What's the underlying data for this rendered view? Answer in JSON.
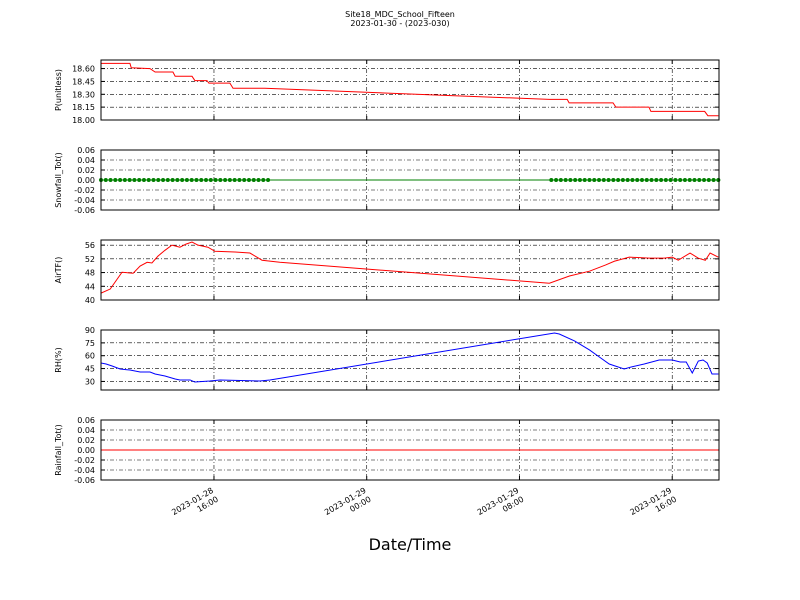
{
  "title": "Site18_MDC_School_Fifteen",
  "subtitle": "2023-01-30 - (2023-030)",
  "xlabel": "Date/Time",
  "chart_data": [
    {
      "type": "line",
      "ylabel": "P(unitless)",
      "color": "#ff0000",
      "grid": true,
      "xlim": [
        "2023-01-28 10:05",
        "2023-01-29 18:27"
      ],
      "xticks": [
        "2023-01-28 16:00",
        "2023-01-29 00:00",
        "2023-01-29 08:00",
        "2023-01-29 16:00"
      ],
      "ylim": [
        18.0,
        18.7
      ],
      "yticks": [
        {
          "value": 18.0,
          "label": "18.00"
        },
        {
          "value": 18.15,
          "label": "18.15"
        },
        {
          "value": 18.3,
          "label": "18.30"
        },
        {
          "value": 18.45,
          "label": "18.45"
        },
        {
          "value": 18.6,
          "label": "18.60"
        }
      ],
      "x": [
        "2023-01-28 10:05",
        "2023-01-28 11:36",
        "2023-01-28 11:40",
        "2023-01-28 12:39",
        "2023-01-28 12:55",
        "2023-01-28 13:51",
        "2023-01-28 13:58",
        "2023-01-28 14:51",
        "2023-01-28 15:00",
        "2023-01-28 15:38",
        "2023-01-28 15:44",
        "2023-01-28 16:50",
        "2023-01-28 17:00",
        "2023-01-28 18:40",
        "2023-01-29 09:34",
        "2023-01-29 10:30",
        "2023-01-29 10:36",
        "2023-01-29 12:54",
        "2023-01-29 13:03",
        "2023-01-29 14:47",
        "2023-01-29 14:53",
        "2023-01-29 17:42",
        "2023-01-29 17:52",
        "2023-01-29 18:25"
      ],
      "values": [
        18.66,
        18.66,
        18.61,
        18.6,
        18.56,
        18.56,
        18.51,
        18.51,
        18.46,
        18.46,
        18.43,
        18.43,
        18.37,
        18.37,
        18.24,
        18.24,
        18.2,
        18.2,
        18.15,
        18.15,
        18.1,
        18.1,
        18.05,
        18.05
      ]
    },
    {
      "type": "line",
      "ylabel": "Snowfall_Tot()",
      "color": "#007f00",
      "marker": "o",
      "grid": true,
      "xlim": [
        "2023-01-28 10:05",
        "2023-01-29 18:27"
      ],
      "xticks": [
        "2023-01-28 16:00",
        "2023-01-29 00:00",
        "2023-01-29 08:00",
        "2023-01-29 16:00"
      ],
      "ylim": [
        -0.06,
        0.06
      ],
      "yticks": [
        {
          "value": -0.06,
          "label": "-0.06"
        },
        {
          "value": -0.04,
          "label": "-0.04"
        },
        {
          "value": -0.02,
          "label": "-0.02"
        },
        {
          "value": 0,
          "label": "0.00"
        },
        {
          "value": 0.02,
          "label": "0.02"
        },
        {
          "value": 0.04,
          "label": "0.04"
        },
        {
          "value": 0.06,
          "label": "0.06"
        }
      ],
      "x": [
        "2023-01-28 10:05",
        "2023-01-28 10:20",
        "2023-01-28 10:35",
        "2023-01-28 10:50",
        "2023-01-28 11:05",
        "2023-01-28 11:20",
        "2023-01-28 11:35",
        "2023-01-28 11:50",
        "2023-01-28 12:05",
        "2023-01-28 12:20",
        "2023-01-28 12:35",
        "2023-01-28 12:50",
        "2023-01-28 13:05",
        "2023-01-28 13:20",
        "2023-01-28 13:35",
        "2023-01-28 13:50",
        "2023-01-28 14:05",
        "2023-01-28 14:20",
        "2023-01-28 14:35",
        "2023-01-28 14:50",
        "2023-01-28 15:05",
        "2023-01-28 15:20",
        "2023-01-28 15:35",
        "2023-01-28 15:50",
        "2023-01-28 16:05",
        "2023-01-28 16:20",
        "2023-01-28 16:35",
        "2023-01-28 16:50",
        "2023-01-28 17:05",
        "2023-01-28 17:20",
        "2023-01-28 17:35",
        "2023-01-28 17:50",
        "2023-01-28 18:05",
        "2023-01-28 18:20",
        "2023-01-28 18:35",
        "2023-01-28 18:50",
        "2023-01-29 09:40",
        "2023-01-29 09:55",
        "2023-01-29 10:10",
        "2023-01-29 10:25",
        "2023-01-29 10:40",
        "2023-01-29 10:55",
        "2023-01-29 11:10",
        "2023-01-29 11:25",
        "2023-01-29 11:40",
        "2023-01-29 11:55",
        "2023-01-29 12:10",
        "2023-01-29 12:25",
        "2023-01-29 12:40",
        "2023-01-29 12:55",
        "2023-01-29 13:10",
        "2023-01-29 13:25",
        "2023-01-29 13:40",
        "2023-01-29 13:55",
        "2023-01-29 14:10",
        "2023-01-29 14:25",
        "2023-01-29 14:40",
        "2023-01-29 14:55",
        "2023-01-29 15:10",
        "2023-01-29 15:25",
        "2023-01-29 15:40",
        "2023-01-29 15:55",
        "2023-01-29 16:10",
        "2023-01-29 16:25",
        "2023-01-29 16:40",
        "2023-01-29 16:55",
        "2023-01-29 17:10",
        "2023-01-29 17:25",
        "2023-01-29 17:40",
        "2023-01-29 17:55",
        "2023-01-29 18:10",
        "2023-01-29 18:25"
      ],
      "values": [
        0,
        0,
        0,
        0,
        0,
        0,
        0,
        0,
        0,
        0,
        0,
        0,
        0,
        0,
        0,
        0,
        0,
        0,
        0,
        0,
        0,
        0,
        0,
        0,
        0,
        0,
        0,
        0,
        0,
        0,
        0,
        0,
        0,
        0,
        0,
        0,
        0,
        0,
        0,
        0,
        0,
        0,
        0,
        0,
        0,
        0,
        0,
        0,
        0,
        0,
        0,
        0,
        0,
        0,
        0,
        0,
        0,
        0,
        0,
        0,
        0,
        0,
        0,
        0,
        0,
        0,
        0,
        0,
        0,
        0,
        0,
        0
      ]
    },
    {
      "type": "line",
      "ylabel": "AirTF()",
      "color": "#ff0000",
      "grid": true,
      "xlim": [
        "2023-01-28 10:05",
        "2023-01-29 18:27"
      ],
      "xticks": [
        "2023-01-28 16:00",
        "2023-01-29 00:00",
        "2023-01-29 08:00",
        "2023-01-29 16:00"
      ],
      "ylim": [
        40,
        57.5
      ],
      "yticks": [
        40,
        44,
        48,
        52,
        56
      ],
      "x": [
        "2023-01-28 10:05",
        "2023-01-28 10:34",
        "2023-01-28 11:11",
        "2023-01-28 11:46",
        "2023-01-28 12:08",
        "2023-01-28 12:30",
        "2023-01-28 12:45",
        "2023-01-28 13:04",
        "2023-01-28 13:26",
        "2023-01-28 13:48",
        "2023-01-28 14:13",
        "2023-01-28 14:32",
        "2023-01-28 14:51",
        "2023-01-28 15:10",
        "2023-01-28 15:41",
        "2023-01-28 16:03",
        "2023-01-28 17:06",
        "2023-01-28 17:53",
        "2023-01-28 18:31",
        "2023-01-28 19:27",
        "2023-01-29 09:34",
        "2023-01-29 10:37",
        "2023-01-29 11:40",
        "2023-01-29 12:30",
        "2023-01-29 12:58",
        "2023-01-29 13:45",
        "2023-01-29 14:48",
        "2023-01-29 15:35",
        "2023-01-29 16:00",
        "2023-01-29 16:19",
        "2023-01-29 16:56",
        "2023-01-29 17:22",
        "2023-01-29 17:44",
        "2023-01-29 17:59",
        "2023-01-29 18:25"
      ],
      "values": [
        42.0,
        43.2,
        48.1,
        47.8,
        49.9,
        51.0,
        50.8,
        52.8,
        54.5,
        56.0,
        55.4,
        56.3,
        56.9,
        56.0,
        55.4,
        54.2,
        54.0,
        53.7,
        51.6,
        51.0,
        44.9,
        47.0,
        48.4,
        50.2,
        51.3,
        52.5,
        52.2,
        52.2,
        52.5,
        51.6,
        53.7,
        52.2,
        51.6,
        53.7,
        52.5
      ]
    },
    {
      "type": "line",
      "ylabel": "RH(%)",
      "color": "#0000ff",
      "grid": true,
      "xlim": [
        "2023-01-28 10:05",
        "2023-01-29 18:27"
      ],
      "xticks": [
        "2023-01-28 16:00",
        "2023-01-29 00:00",
        "2023-01-29 08:00",
        "2023-01-29 16:00"
      ],
      "ylim": [
        20,
        90
      ],
      "yticks": [
        30,
        45,
        60,
        75,
        90
      ],
      "x": [
        "2023-01-28 10:05",
        "2023-01-28 10:21",
        "2023-01-28 10:40",
        "2023-01-28 11:05",
        "2023-01-28 11:36",
        "2023-01-28 12:08",
        "2023-01-28 12:39",
        "2023-01-28 12:55",
        "2023-01-28 13:26",
        "2023-01-28 13:58",
        "2023-01-28 14:13",
        "2023-01-28 14:45",
        "2023-01-28 15:00",
        "2023-01-28 15:47",
        "2023-01-28 16:19",
        "2023-01-28 18:24",
        "2023-01-28 18:56",
        "2023-01-29 09:50",
        "2023-01-29 10:05",
        "2023-01-29 10:53",
        "2023-01-29 11:40",
        "2023-01-29 12:11",
        "2023-01-29 12:42",
        "2023-01-29 13:29",
        "2023-01-29 13:51",
        "2023-01-29 14:32",
        "2023-01-29 15:19",
        "2023-01-29 16:00",
        "2023-01-29 16:25",
        "2023-01-29 16:44",
        "2023-01-29 17:03",
        "2023-01-29 17:22",
        "2023-01-29 17:37",
        "2023-01-29 17:50",
        "2023-01-29 18:05",
        "2023-01-29 18:25"
      ],
      "values": [
        51.5,
        50.3,
        48.0,
        44.5,
        43.3,
        41.0,
        41.0,
        38.7,
        36.3,
        32.8,
        31.7,
        31.7,
        29.3,
        30.5,
        31.7,
        30.5,
        31.7,
        86.5,
        85.3,
        77.2,
        66.7,
        58.5,
        50.3,
        44.5,
        46.8,
        50.3,
        55.0,
        55.0,
        52.7,
        52.7,
        39.8,
        53.8,
        55.0,
        51.5,
        38.7,
        38.7
      ]
    },
    {
      "type": "line",
      "ylabel": "Rainfall_Tot()",
      "color": "#ff0000",
      "grid": true,
      "xlim": [
        "2023-01-28 10:05",
        "2023-01-29 18:27"
      ],
      "xticks": [
        "2023-01-28 16:00",
        "2023-01-29 00:00",
        "2023-01-29 08:00",
        "2023-01-29 16:00"
      ],
      "ylim": [
        -0.06,
        0.06
      ],
      "yticks": [
        {
          "value": -0.06,
          "label": "-0.06"
        },
        {
          "value": -0.04,
          "label": "-0.04"
        },
        {
          "value": -0.02,
          "label": "-0.02"
        },
        {
          "value": 0,
          "label": "0.00"
        },
        {
          "value": 0.02,
          "label": "0.02"
        },
        {
          "value": 0.04,
          "label": "0.04"
        },
        {
          "value": 0.06,
          "label": "0.06"
        }
      ],
      "x": [
        "2023-01-28 10:05",
        "2023-01-29 18:25"
      ],
      "values": [
        0,
        0
      ]
    }
  ]
}
